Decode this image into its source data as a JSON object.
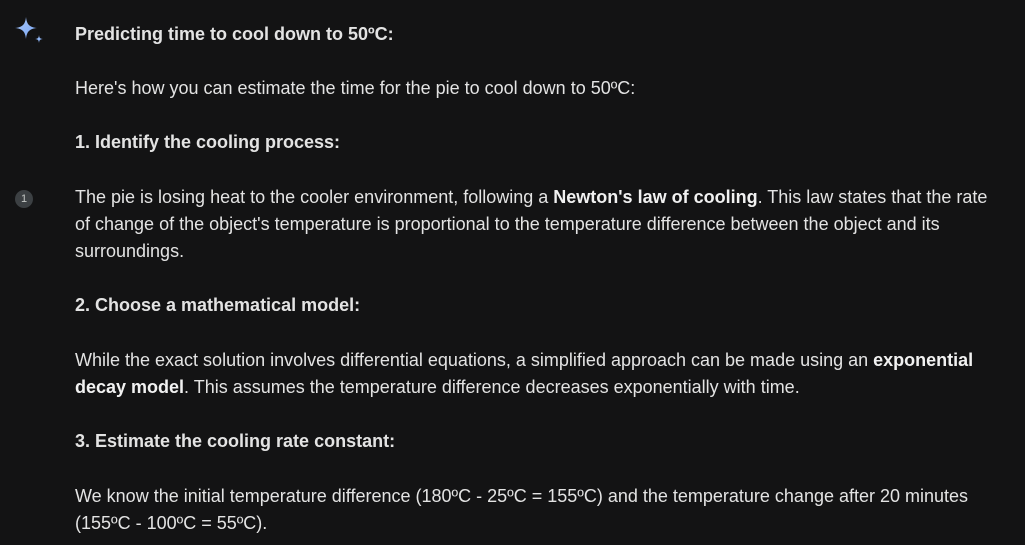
{
  "response": {
    "title": "Predicting time to cool down to 50ºC:",
    "intro": "Here's how you can estimate the time for the pie to cool down to 50ºC:",
    "citation": "1",
    "step1": {
      "heading": "1. Identify the cooling process:",
      "line1_a": "The pie is losing heat to the cooler environment, following a ",
      "line1_bold": "Newton's law of cooling",
      "line1_b": ". This law states that the rate",
      "line2": "of change of the object's temperature is proportional to the temperature difference between the object and its",
      "line3": "surroundings."
    },
    "step2": {
      "heading": "2. Choose a mathematical model:",
      "line1_a": "While the exact solution involves differential equations, a simplified approach can be made using an ",
      "line1_bold": "exponential",
      "line2_bold": "decay model",
      "line2_b": ". This assumes the temperature difference decreases exponentially with time."
    },
    "step3": {
      "heading": "3. Estimate the cooling rate constant:",
      "line1": "We know the initial temperature difference (180ºC - 25ºC = 155ºC) and the temperature change after 20 minutes",
      "line2": "(155ºC - 100ºC = 55ºC)."
    }
  },
  "icons": {
    "assistant": "sparkle-icon",
    "accent": "#8ab4f8"
  }
}
